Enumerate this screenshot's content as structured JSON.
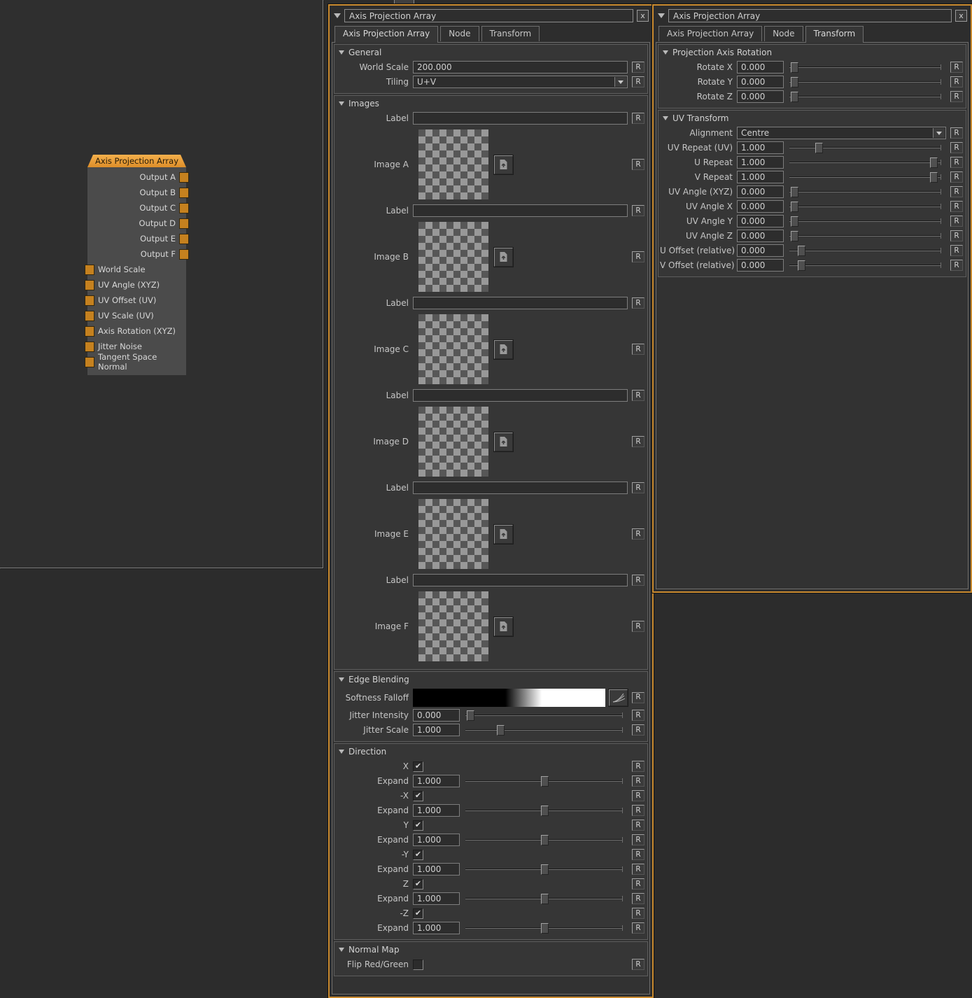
{
  "reset_label": "R",
  "colors": {
    "accent": "#c98a2f",
    "node_header_top": "#f5b04c",
    "node_header_bottom": "#dd8e29",
    "port": "#c5811f",
    "checker_light": "#989898",
    "checker_dark": "#575757"
  },
  "node_graph": {
    "node": {
      "title": "Axis Projection Array",
      "outputs": [
        "Output A",
        "Output B",
        "Output C",
        "Output D",
        "Output E",
        "Output F"
      ],
      "inputs": [
        "World Scale",
        "UV Angle (XYZ)",
        "UV Offset (UV)",
        "UV Scale (UV)",
        "Axis Rotation (XYZ)",
        "Jitter Noise",
        "Tangent Space Normal"
      ]
    }
  },
  "properties_panel": {
    "title": "Axis Projection Array",
    "close_label": "x",
    "tabs": [
      {
        "label": "Axis Projection Array",
        "active": true
      },
      {
        "label": "Node",
        "active": false
      },
      {
        "label": "Transform",
        "active": false
      }
    ],
    "sections": [
      {
        "title": "General",
        "rows": [
          {
            "type": "input",
            "label": "World Scale",
            "value": "200.000"
          },
          {
            "type": "dropdown",
            "label": "Tiling",
            "value": "U+V"
          }
        ]
      },
      {
        "title": "Images",
        "rows": [
          {
            "type": "input",
            "label": "Label",
            "value": ""
          },
          {
            "type": "image",
            "label": "Image A",
            "icon": "file-upload-icon"
          },
          {
            "type": "input",
            "label": "Label",
            "value": ""
          },
          {
            "type": "image",
            "label": "Image B",
            "icon": "file-upload-icon"
          },
          {
            "type": "input",
            "label": "Label",
            "value": ""
          },
          {
            "type": "image",
            "label": "Image C",
            "icon": "file-upload-icon"
          },
          {
            "type": "input",
            "label": "Label",
            "value": ""
          },
          {
            "type": "image",
            "label": "Image D",
            "icon": "file-upload-icon"
          },
          {
            "type": "input",
            "label": "Label",
            "value": ""
          },
          {
            "type": "image",
            "label": "Image E",
            "icon": "file-upload-icon"
          },
          {
            "type": "input",
            "label": "Label",
            "value": ""
          },
          {
            "type": "image",
            "label": "Image F",
            "icon": "file-upload-icon"
          }
        ]
      },
      {
        "title": "Edge Blending",
        "rows": [
          {
            "type": "gradient",
            "label": "Softness Falloff",
            "icon": "falloff-curve-icon"
          },
          {
            "type": "sliderfield",
            "label": "Jitter Intensity",
            "value": "0.000",
            "slider": 0.01
          },
          {
            "type": "sliderfield",
            "label": "Jitter Scale",
            "value": "1.000",
            "slider": 0.21
          }
        ]
      },
      {
        "title": "Direction",
        "rows": [
          {
            "type": "checkbox",
            "label": "X",
            "checked": true
          },
          {
            "type": "sliderfield",
            "label": "Expand",
            "value": "1.000",
            "slider": 0.5
          },
          {
            "type": "checkbox",
            "label": "-X",
            "checked": true
          },
          {
            "type": "sliderfield",
            "label": "Expand",
            "value": "1.000",
            "slider": 0.5
          },
          {
            "type": "checkbox",
            "label": "Y",
            "checked": true
          },
          {
            "type": "sliderfield",
            "label": "Expand",
            "value": "1.000",
            "slider": 0.5
          },
          {
            "type": "checkbox",
            "label": "-Y",
            "checked": true
          },
          {
            "type": "sliderfield",
            "label": "Expand",
            "value": "1.000",
            "slider": 0.5
          },
          {
            "type": "checkbox",
            "label": "Z",
            "checked": true
          },
          {
            "type": "sliderfield",
            "label": "Expand",
            "value": "1.000",
            "slider": 0.5
          },
          {
            "type": "checkbox",
            "label": "-Z",
            "checked": true
          },
          {
            "type": "sliderfield",
            "label": "Expand",
            "value": "1.000",
            "slider": 0.5
          }
        ]
      },
      {
        "title": "Normal Map",
        "rows": [
          {
            "type": "checkbox",
            "label": "Flip Red/Green",
            "checked": false
          }
        ]
      }
    ]
  },
  "transform_panel": {
    "title": "Axis Projection Array",
    "close_label": "x",
    "tabs": [
      {
        "label": "Axis Projection Array",
        "active": false
      },
      {
        "label": "Node",
        "active": false
      },
      {
        "label": "Transform",
        "active": true
      }
    ],
    "sections": [
      {
        "title": "Projection Axis Rotation",
        "rows": [
          {
            "type": "sliderfield",
            "label": "Rotate X",
            "value": "0.000",
            "slider": 0.01
          },
          {
            "type": "sliderfield",
            "label": "Rotate Y",
            "value": "0.000",
            "slider": 0.01
          },
          {
            "type": "sliderfield",
            "label": "Rotate Z",
            "value": "0.000",
            "slider": 0.01
          }
        ]
      },
      {
        "title": "UV Transform",
        "rows": [
          {
            "type": "dropdown",
            "label": "Alignment",
            "value": "Centre"
          },
          {
            "type": "sliderfield",
            "label": "UV Repeat (UV)",
            "value": "1.000",
            "slider": 0.18
          },
          {
            "type": "sliderfield",
            "label": "U Repeat",
            "value": "1.000",
            "slider": 0.965
          },
          {
            "type": "sliderfield",
            "label": "V Repeat",
            "value": "1.000",
            "slider": 0.965
          },
          {
            "type": "sliderfield",
            "label": "UV Angle (XYZ)",
            "value": "0.000",
            "slider": 0.01
          },
          {
            "type": "sliderfield",
            "label": "UV Angle X",
            "value": "0.000",
            "slider": 0.01
          },
          {
            "type": "sliderfield",
            "label": "UV Angle Y",
            "value": "0.000",
            "slider": 0.01
          },
          {
            "type": "sliderfield",
            "label": "UV Angle Z",
            "value": "0.000",
            "slider": 0.01
          },
          {
            "type": "sliderfield",
            "label": "U Offset (relative)",
            "value": "0.000",
            "slider": 0.06
          },
          {
            "type": "sliderfield",
            "label": "V Offset (relative)",
            "value": "0.000",
            "slider": 0.06
          }
        ]
      }
    ]
  }
}
